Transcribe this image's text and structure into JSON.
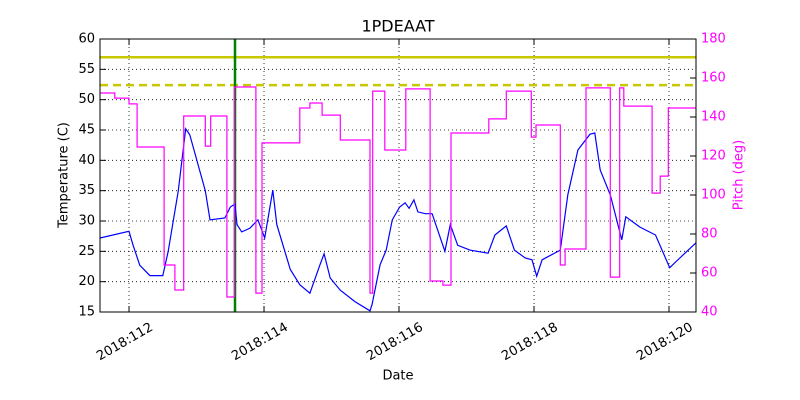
{
  "chart_data": {
    "type": "line",
    "title": "1PDEAAT",
    "x_label": "Date",
    "y_label": "Temperature (C)",
    "y2_label": "Pitch (deg)",
    "y2_color": "#ff00ff",
    "grid": true,
    "xlim": [
      111.57,
      120.4
    ],
    "xticks": [
      {
        "value": 112,
        "label": "2018:112"
      },
      {
        "value": 114,
        "label": "2018:114"
      },
      {
        "value": 116,
        "label": "2018:116"
      },
      {
        "value": 118,
        "label": "2018:118"
      },
      {
        "value": 120,
        "label": "2018:120"
      }
    ],
    "ylim": [
      15,
      60
    ],
    "yticks": [
      15,
      20,
      25,
      30,
      35,
      40,
      45,
      50,
      55,
      60
    ],
    "y2lim": [
      40,
      180
    ],
    "y2ticks": [
      40,
      60,
      80,
      100,
      120,
      140,
      160,
      180
    ],
    "hlines": [
      {
        "y": 57,
        "color": "#c8c800",
        "style": "solid"
      },
      {
        "y": 52.4,
        "color": "#c8c800",
        "style": "dashed"
      }
    ],
    "vlines": [
      {
        "x": 113.57,
        "color": "#008000"
      }
    ],
    "series": [
      {
        "color": "#0000ff",
        "x": [
          111.57,
          112.0,
          112.06,
          112.16,
          112.31,
          112.5,
          112.58,
          112.73,
          112.84,
          112.9,
          113.13,
          113.2,
          113.42,
          113.5,
          113.57,
          113.6,
          113.67,
          113.79,
          113.91,
          114.01,
          114.13,
          114.19,
          114.39,
          114.53,
          114.68,
          114.83,
          114.89,
          114.98,
          115.13,
          115.35,
          115.57,
          115.6,
          115.72,
          115.81,
          115.9,
          116.01,
          116.09,
          116.15,
          116.22,
          116.28,
          116.39,
          116.49,
          116.68,
          116.76,
          116.87,
          117.05,
          117.32,
          117.42,
          117.59,
          117.71,
          117.87,
          117.97,
          118.04,
          118.12,
          118.39,
          118.5,
          118.65,
          118.83,
          118.9,
          118.98,
          119.13,
          119.3,
          119.36,
          119.57,
          119.8,
          120.01,
          120.16,
          120.4
        ],
        "values": [
          27.2,
          28.3,
          26,
          22.7,
          21,
          21,
          25,
          35,
          45.2,
          44.2,
          35,
          30.2,
          30.5,
          32.3,
          32.8,
          29.4,
          28.2,
          28.8,
          30.2,
          27.2,
          35.1,
          29.4,
          22,
          19.5,
          18.1,
          22.8,
          24.6,
          20.6,
          18.6,
          16.7,
          15.2,
          16.2,
          22.8,
          25.2,
          30.2,
          32.3,
          33,
          32.1,
          33.5,
          31.5,
          31.2,
          31.2,
          25,
          29.4,
          26,
          25.2,
          24.7,
          27.7,
          29.2,
          25.2,
          23.9,
          23.6,
          20.9,
          23.6,
          25.2,
          34.3,
          41.7,
          44.3,
          44.5,
          38.4,
          34.3,
          26.9,
          30.7,
          29,
          27.7,
          22.3,
          23.9,
          26.4
        ]
      },
      {
        "color": "#ff00ff",
        "axis": "y2",
        "x": [
          111.57,
          111.79,
          111.79,
          112.0,
          112.0,
          112.12,
          112.12,
          112.52,
          112.52,
          112.68,
          112.68,
          112.81,
          112.81,
          113.13,
          113.13,
          113.21,
          113.21,
          113.45,
          113.45,
          113.56,
          113.56,
          113.88,
          113.88,
          113.97,
          113.97,
          114.53,
          114.53,
          114.68,
          114.68,
          114.86,
          114.86,
          115.13,
          115.13,
          115.57,
          115.57,
          115.61,
          115.61,
          115.79,
          115.79,
          116.1,
          116.1,
          116.46,
          116.46,
          116.65,
          116.65,
          116.77,
          116.77,
          117.33,
          117.33,
          117.59,
          117.59,
          117.96,
          117.96,
          118.03,
          118.03,
          118.39,
          118.39,
          118.46,
          118.46,
          118.77,
          118.77,
          119.13,
          119.13,
          119.27,
          119.27,
          119.33,
          119.33,
          119.75,
          119.75,
          119.87,
          119.87,
          119.99,
          119.99,
          120.4
        ],
        "values": [
          152.3,
          152.3,
          149.7,
          149.7,
          146.7,
          146.7,
          124.6,
          124.6,
          64.1,
          64.1,
          51.3,
          51.3,
          140.5,
          140.5,
          125.1,
          125.1,
          140.5,
          140.5,
          47.7,
          47.7,
          155.4,
          155.4,
          49.7,
          49.7,
          126.7,
          126.7,
          144.6,
          144.6,
          147.2,
          147.2,
          141,
          141,
          128.2,
          128.2,
          49.7,
          49.7,
          153.3,
          153.3,
          123.1,
          123.1,
          154.4,
          154.4,
          55.9,
          55.9,
          53.8,
          53.8,
          131.8,
          131.8,
          139,
          139,
          153.3,
          153.3,
          129.7,
          129.7,
          135.9,
          135.9,
          64.1,
          64.1,
          72.3,
          72.3,
          154.9,
          154.9,
          57.9,
          57.9,
          154.9,
          154.9,
          145.6,
          145.6,
          101,
          101,
          109.7,
          109.7,
          144.6,
          144.6
        ]
      }
    ]
  }
}
